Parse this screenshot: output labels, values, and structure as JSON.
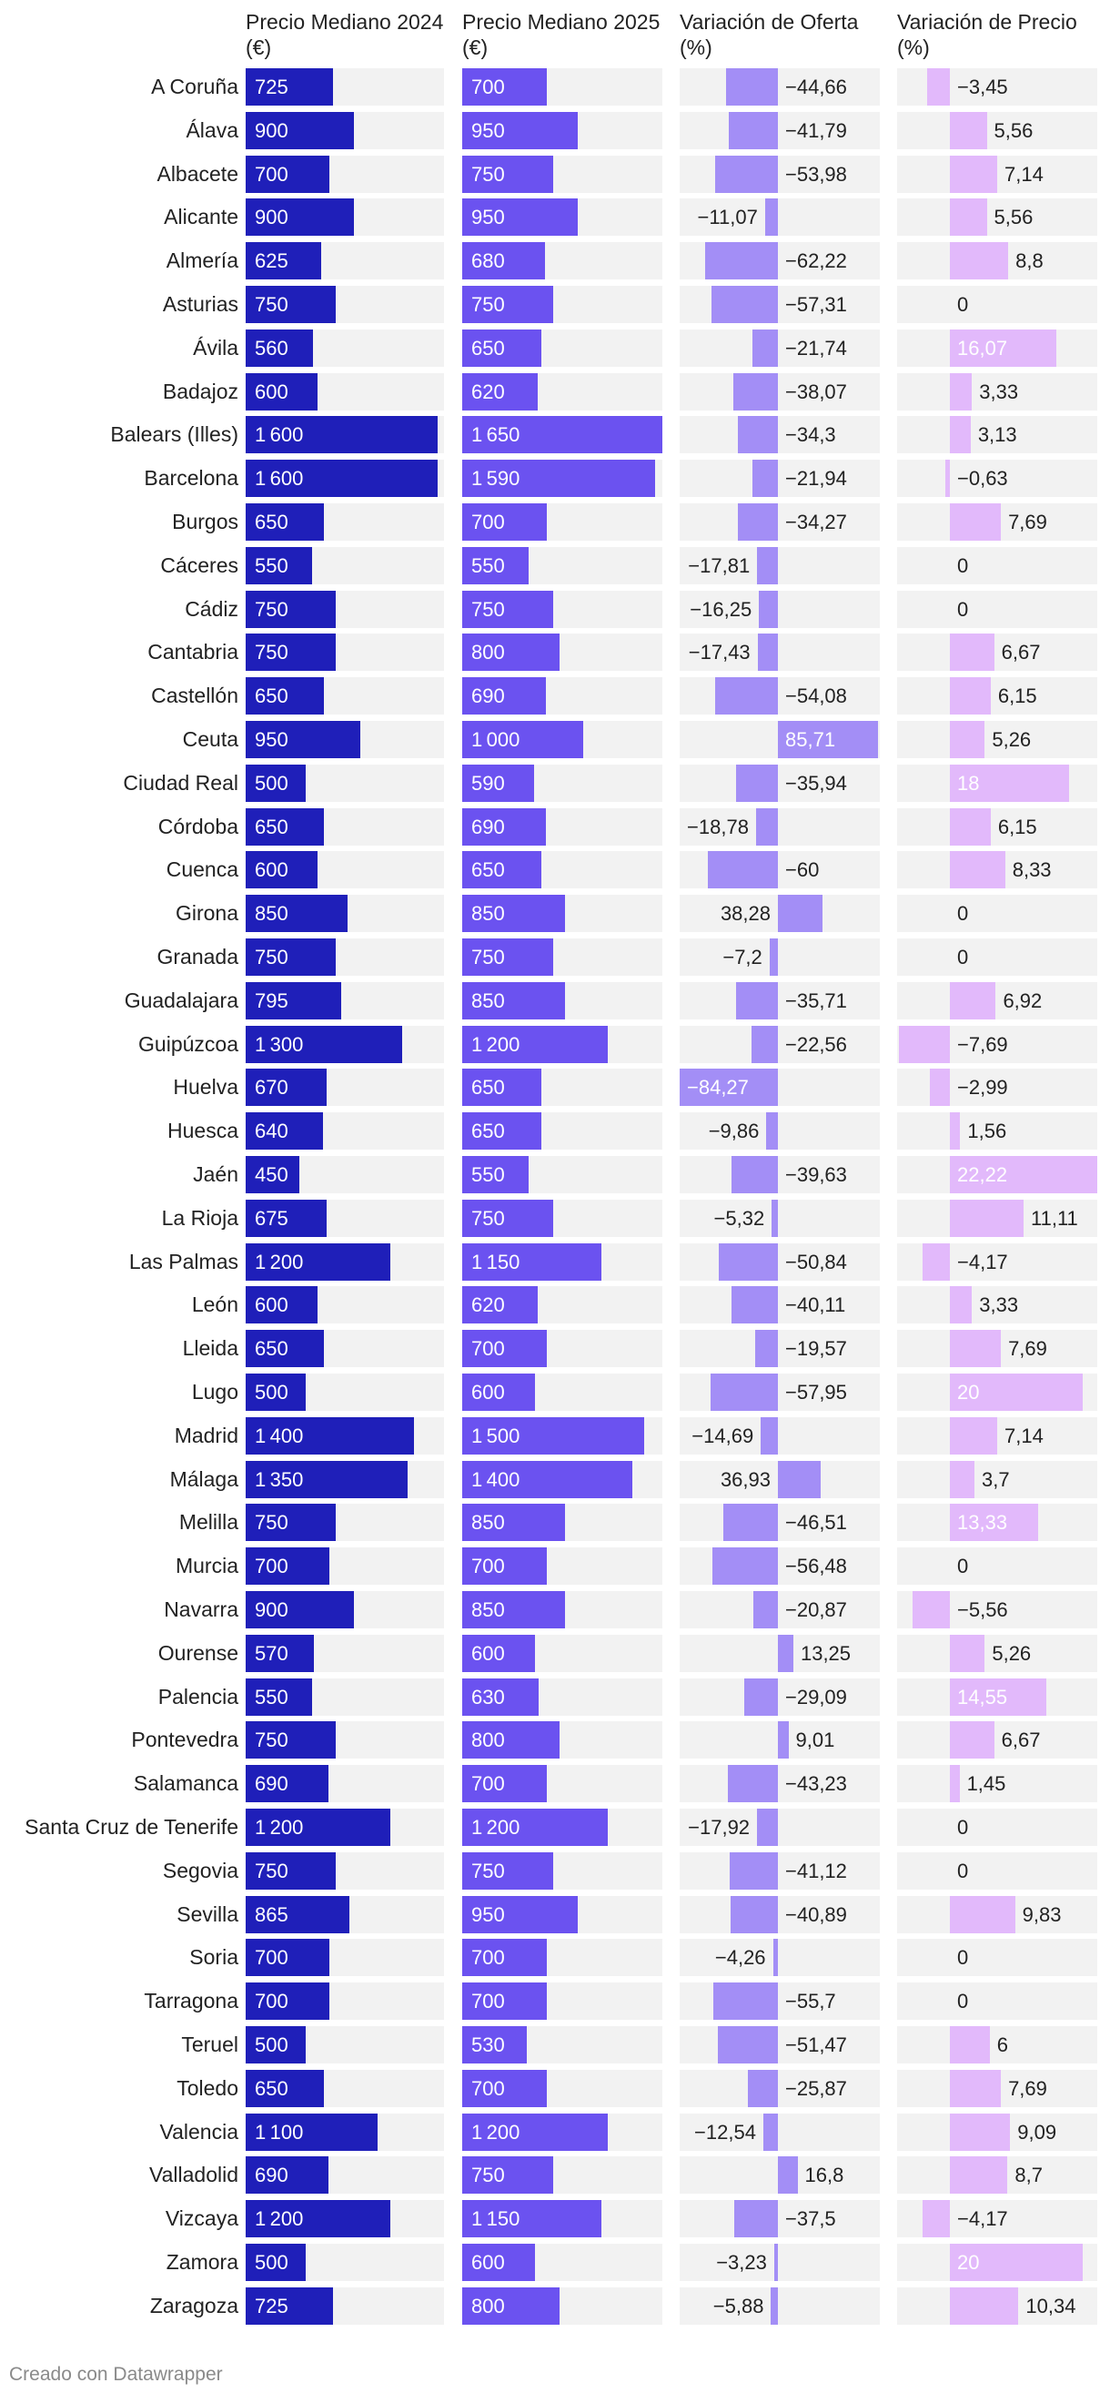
{
  "chart_data": {
    "type": "table",
    "columns": [
      "Precio Mediano 2024 (€)",
      "Precio Mediano 2025 (€)",
      "Variación de Oferta (%)",
      "Variación de Precio (%)"
    ],
    "colors": {
      "price2024": "#1f1fb9",
      "price2025": "#6b52f0",
      "oferta": "#a38ef6",
      "precio": "#e2b9fb",
      "cell_background": "#f2f2f2"
    },
    "rows": [
      {
        "provincia": "A Coruña",
        "p2024": 725,
        "p2025": 700,
        "oferta": -44.66,
        "precio": -3.45
      },
      {
        "provincia": "Álava",
        "p2024": 900,
        "p2025": 950,
        "oferta": -41.79,
        "precio": 5.56
      },
      {
        "provincia": "Albacete",
        "p2024": 700,
        "p2025": 750,
        "oferta": -53.98,
        "precio": 7.14
      },
      {
        "provincia": "Alicante",
        "p2024": 900,
        "p2025": 950,
        "oferta": -11.07,
        "precio": 5.56
      },
      {
        "provincia": "Almería",
        "p2024": 625,
        "p2025": 680,
        "oferta": -62.22,
        "precio": 8.8
      },
      {
        "provincia": "Asturias",
        "p2024": 750,
        "p2025": 750,
        "oferta": -57.31,
        "precio": 0
      },
      {
        "provincia": "Ávila",
        "p2024": 560,
        "p2025": 650,
        "oferta": -21.74,
        "precio": 16.07
      },
      {
        "provincia": "Badajoz",
        "p2024": 600,
        "p2025": 620,
        "oferta": -38.07,
        "precio": 3.33
      },
      {
        "provincia": "Balears (Illes)",
        "p2024": 1600,
        "p2025": 1650,
        "oferta": -34.3,
        "precio": 3.13
      },
      {
        "provincia": "Barcelona",
        "p2024": 1600,
        "p2025": 1590,
        "oferta": -21.94,
        "precio": -0.63
      },
      {
        "provincia": "Burgos",
        "p2024": 650,
        "p2025": 700,
        "oferta": -34.27,
        "precio": 7.69
      },
      {
        "provincia": "Cáceres",
        "p2024": 550,
        "p2025": 550,
        "oferta": -17.81,
        "precio": 0
      },
      {
        "provincia": "Cádiz",
        "p2024": 750,
        "p2025": 750,
        "oferta": -16.25,
        "precio": 0
      },
      {
        "provincia": "Cantabria",
        "p2024": 750,
        "p2025": 800,
        "oferta": -17.43,
        "precio": 6.67
      },
      {
        "provincia": "Castellón",
        "p2024": 650,
        "p2025": 690,
        "oferta": -54.08,
        "precio": 6.15
      },
      {
        "provincia": "Ceuta",
        "p2024": 950,
        "p2025": 1000,
        "oferta": 85.71,
        "precio": 5.26
      },
      {
        "provincia": "Ciudad Real",
        "p2024": 500,
        "p2025": 590,
        "oferta": -35.94,
        "precio": 18
      },
      {
        "provincia": "Córdoba",
        "p2024": 650,
        "p2025": 690,
        "oferta": -18.78,
        "precio": 6.15
      },
      {
        "provincia": "Cuenca",
        "p2024": 600,
        "p2025": 650,
        "oferta": -60,
        "precio": 8.33
      },
      {
        "provincia": "Girona",
        "p2024": 850,
        "p2025": 850,
        "oferta": 38.28,
        "precio": 0
      },
      {
        "provincia": "Granada",
        "p2024": 750,
        "p2025": 750,
        "oferta": -7.2,
        "precio": 0
      },
      {
        "provincia": "Guadalajara",
        "p2024": 795,
        "p2025": 850,
        "oferta": -35.71,
        "precio": 6.92
      },
      {
        "provincia": "Guipúzcoa",
        "p2024": 1300,
        "p2025": 1200,
        "oferta": -22.56,
        "precio": -7.69
      },
      {
        "provincia": "Huelva",
        "p2024": 670,
        "p2025": 650,
        "oferta": -84.27,
        "precio": -2.99
      },
      {
        "provincia": "Huesca",
        "p2024": 640,
        "p2025": 650,
        "oferta": -9.86,
        "precio": 1.56
      },
      {
        "provincia": "Jaén",
        "p2024": 450,
        "p2025": 550,
        "oferta": -39.63,
        "precio": 22.22
      },
      {
        "provincia": "La Rioja",
        "p2024": 675,
        "p2025": 750,
        "oferta": -5.32,
        "precio": 11.11
      },
      {
        "provincia": "Las Palmas",
        "p2024": 1200,
        "p2025": 1150,
        "oferta": -50.84,
        "precio": -4.17
      },
      {
        "provincia": "León",
        "p2024": 600,
        "p2025": 620,
        "oferta": -40.11,
        "precio": 3.33
      },
      {
        "provincia": "Lleida",
        "p2024": 650,
        "p2025": 700,
        "oferta": -19.57,
        "precio": 7.69
      },
      {
        "provincia": "Lugo",
        "p2024": 500,
        "p2025": 600,
        "oferta": -57.95,
        "precio": 20
      },
      {
        "provincia": "Madrid",
        "p2024": 1400,
        "p2025": 1500,
        "oferta": -14.69,
        "precio": 7.14
      },
      {
        "provincia": "Málaga",
        "p2024": 1350,
        "p2025": 1400,
        "oferta": 36.93,
        "precio": 3.7
      },
      {
        "provincia": "Melilla",
        "p2024": 750,
        "p2025": 850,
        "oferta": -46.51,
        "precio": 13.33
      },
      {
        "provincia": "Murcia",
        "p2024": 700,
        "p2025": 700,
        "oferta": -56.48,
        "precio": 0
      },
      {
        "provincia": "Navarra",
        "p2024": 900,
        "p2025": 850,
        "oferta": -20.87,
        "precio": -5.56
      },
      {
        "provincia": "Ourense",
        "p2024": 570,
        "p2025": 600,
        "oferta": 13.25,
        "precio": 5.26
      },
      {
        "provincia": "Palencia",
        "p2024": 550,
        "p2025": 630,
        "oferta": -29.09,
        "precio": 14.55
      },
      {
        "provincia": "Pontevedra",
        "p2024": 750,
        "p2025": 800,
        "oferta": 9.01,
        "precio": 6.67
      },
      {
        "provincia": "Salamanca",
        "p2024": 690,
        "p2025": 700,
        "oferta": -43.23,
        "precio": 1.45
      },
      {
        "provincia": "Santa Cruz de Tenerife",
        "p2024": 1200,
        "p2025": 1200,
        "oferta": -17.92,
        "precio": 0
      },
      {
        "provincia": "Segovia",
        "p2024": 750,
        "p2025": 750,
        "oferta": -41.12,
        "precio": 0
      },
      {
        "provincia": "Sevilla",
        "p2024": 865,
        "p2025": 950,
        "oferta": -40.89,
        "precio": 9.83
      },
      {
        "provincia": "Soria",
        "p2024": 700,
        "p2025": 700,
        "oferta": -4.26,
        "precio": 0
      },
      {
        "provincia": "Tarragona",
        "p2024": 700,
        "p2025": 700,
        "oferta": -55.7,
        "precio": 0
      },
      {
        "provincia": "Teruel",
        "p2024": 500,
        "p2025": 530,
        "oferta": -51.47,
        "precio": 6
      },
      {
        "provincia": "Toledo",
        "p2024": 650,
        "p2025": 700,
        "oferta": -25.87,
        "precio": 7.69
      },
      {
        "provincia": "Valencia",
        "p2024": 1100,
        "p2025": 1200,
        "oferta": -12.54,
        "precio": 9.09
      },
      {
        "provincia": "Valladolid",
        "p2024": 690,
        "p2025": 750,
        "oferta": 16.8,
        "precio": 8.7
      },
      {
        "provincia": "Vizcaya",
        "p2024": 1200,
        "p2025": 1150,
        "oferta": -37.5,
        "precio": -4.17
      },
      {
        "provincia": "Zamora",
        "p2024": 500,
        "p2025": 600,
        "oferta": -3.23,
        "precio": 20
      },
      {
        "provincia": "Zaragoza",
        "p2024": 725,
        "p2025": 800,
        "oferta": -5.88,
        "precio": 10.34
      }
    ]
  },
  "footer": "Creado con Datawrapper"
}
